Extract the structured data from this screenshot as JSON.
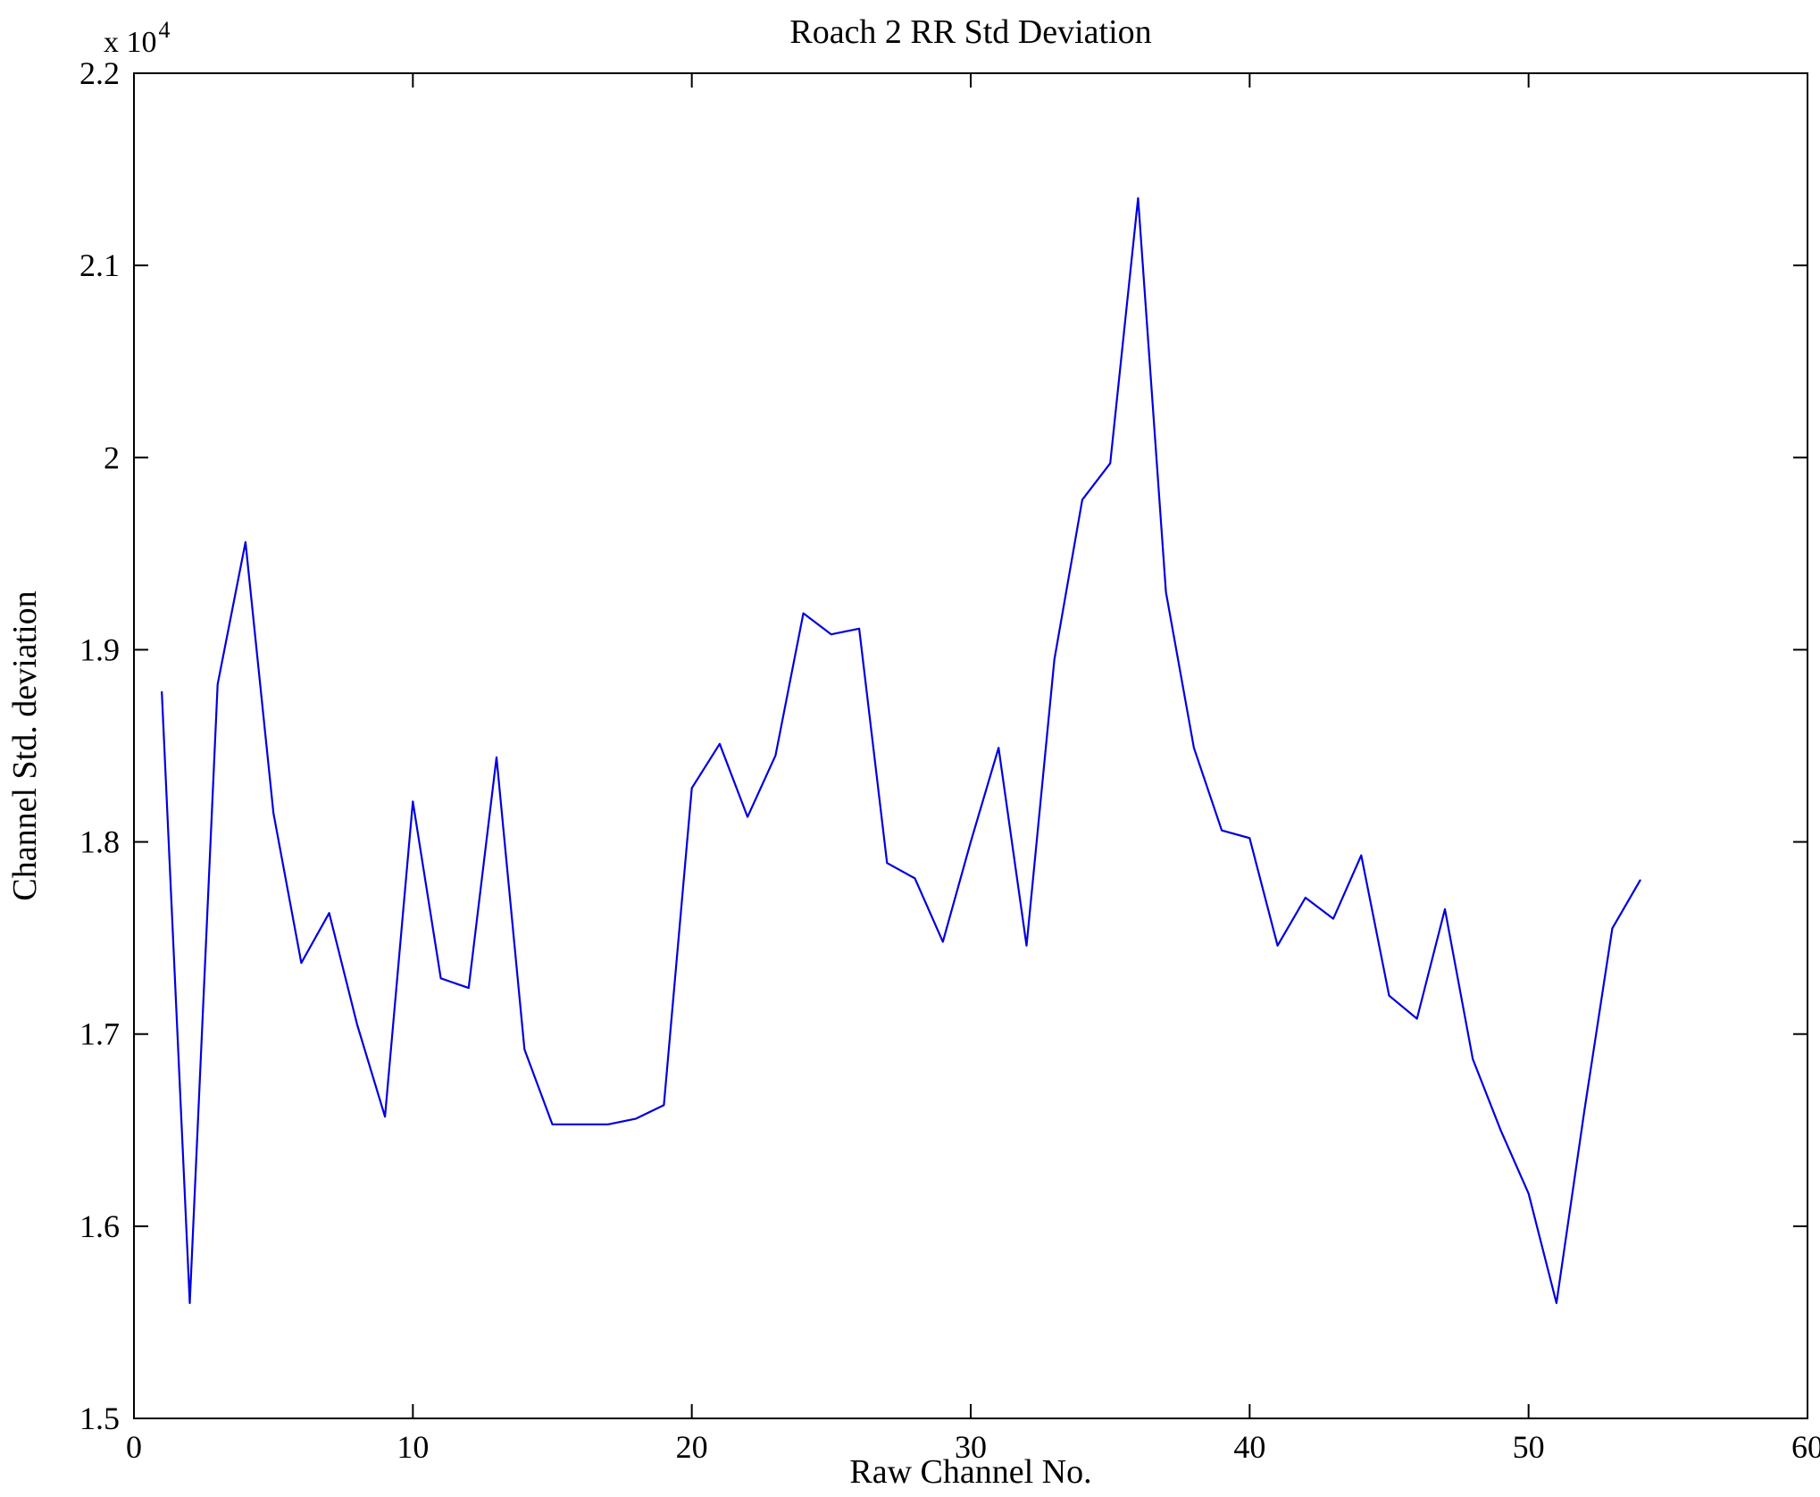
{
  "chart_data": {
    "type": "line",
    "title": "Roach 2 RR Std Deviation",
    "xlabel": "Raw Channel No.",
    "ylabel": "Channel Std. deviation",
    "y_scale_prefix": "x 10",
    "y_scale_exponent": "4",
    "y_unit_multiplier": 10000,
    "xlim": [
      0,
      60
    ],
    "ylim": [
      1.5,
      2.2
    ],
    "x_ticks": [
      0,
      10,
      20,
      30,
      40,
      50,
      60
    ],
    "x_tick_labels": [
      "0",
      "10",
      "20",
      "30",
      "40",
      "50",
      "60"
    ],
    "y_ticks": [
      1.5,
      1.6,
      1.7,
      1.8,
      1.9,
      2.0,
      2.1,
      2.2
    ],
    "y_tick_labels": [
      "1.5",
      "1.6",
      "1.7",
      "1.8",
      "1.9",
      "2",
      "2.1",
      "2.2"
    ],
    "grid": false,
    "legend": null,
    "line_color": "#0000e0",
    "x": [
      1,
      2,
      3,
      4,
      5,
      6,
      7,
      8,
      9,
      10,
      11,
      12,
      13,
      14,
      15,
      16,
      17,
      18,
      19,
      20,
      21,
      22,
      23,
      24,
      25,
      26,
      27,
      28,
      29,
      30,
      31,
      32,
      33,
      34,
      35,
      36,
      37,
      38,
      39,
      40,
      41,
      42,
      43,
      44,
      45,
      46,
      47,
      48,
      49,
      50,
      51,
      52,
      53,
      54
    ],
    "values": [
      1.878,
      1.56,
      1.882,
      1.956,
      1.815,
      1.737,
      1.763,
      1.705,
      1.657,
      1.821,
      1.729,
      1.724,
      1.844,
      1.692,
      1.653,
      1.653,
      1.653,
      1.656,
      1.663,
      1.828,
      1.851,
      1.813,
      1.845,
      1.919,
      1.908,
      1.911,
      1.789,
      1.781,
      1.748,
      1.8,
      1.849,
      1.746,
      1.895,
      1.978,
      1.997,
      2.135,
      1.93,
      1.849,
      1.806,
      1.802,
      1.746,
      1.771,
      1.76,
      1.793,
      1.72,
      1.708,
      1.765,
      1.687,
      1.65,
      1.617,
      1.56,
      1.66,
      1.755,
      1.78
    ]
  }
}
